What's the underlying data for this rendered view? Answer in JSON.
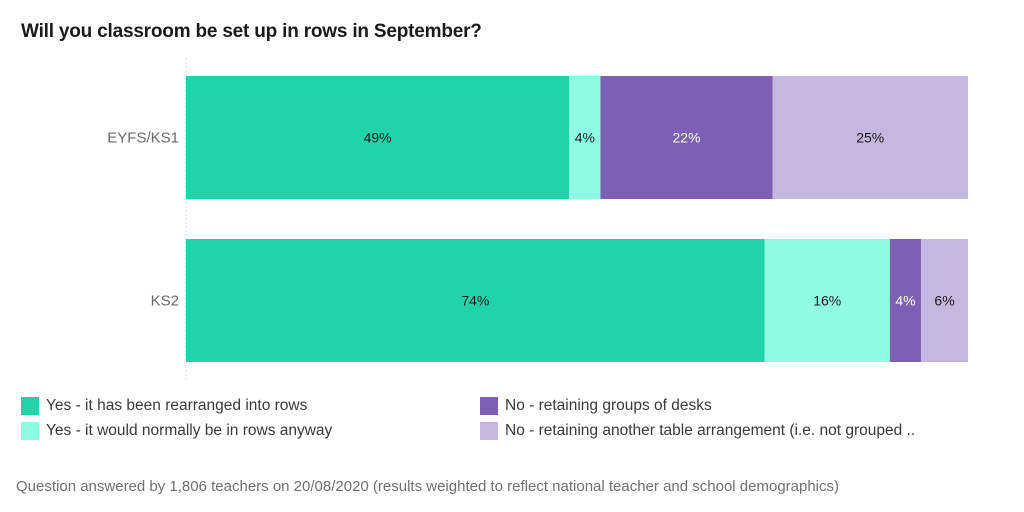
{
  "chart_data": {
    "type": "bar",
    "orientation": "horizontal",
    "stacked": true,
    "title": "Will you classroom be set up in rows in September?",
    "xlabel": "",
    "ylabel": "",
    "xlim": [
      0,
      100
    ],
    "grid": false,
    "legend_position": "bottom",
    "categories": [
      "EYFS/KS1",
      "KS2"
    ],
    "series": [
      {
        "name": "Yes - it has been rearranged into rows",
        "color": "#20d3a8",
        "label_color": "#1a1a1a",
        "values": [
          49,
          74
        ],
        "labels": [
          "49%",
          "74%"
        ]
      },
      {
        "name": "Yes - it would normally be in rows anyway",
        "color": "#8efde3",
        "label_color": "#1a1a1a",
        "values": [
          4,
          16
        ],
        "labels": [
          "4%",
          "16%"
        ]
      },
      {
        "name": "No - retaining groups of desks",
        "color": "#7d5fb5",
        "label_color": "#ffffff",
        "values": [
          22,
          4
        ],
        "labels": [
          "22%",
          "4%"
        ]
      },
      {
        "name": "No - retaining another table arrangement (i.e. not grouped ..",
        "color": "#c4b7e0",
        "label_color": "#1a1a1a",
        "values": [
          25,
          6
        ],
        "labels": [
          "25%",
          "6%"
        ]
      }
    ],
    "footnote": "Question answered by 1,806 teachers on 20/08/2020 (results weighted to reflect national teacher and school demographics)"
  }
}
